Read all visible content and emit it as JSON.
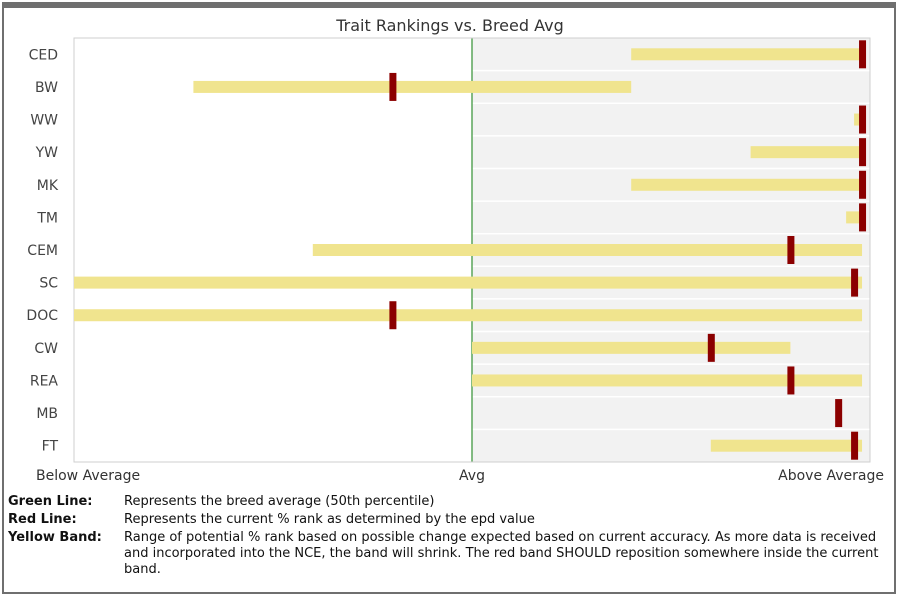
{
  "chart_data": {
    "type": "bar",
    "title": "Trait Rankings vs. Breed Avg",
    "x_axis": {
      "ticks": [
        "Below Average",
        "Avg",
        "Above Average"
      ],
      "range": [
        0,
        100
      ]
    },
    "breed_average": 50,
    "grid": true,
    "categories": [
      "CED",
      "BW",
      "WW",
      "YW",
      "MK",
      "TM",
      "CEM",
      "SC",
      "DOC",
      "CW",
      "REA",
      "MB",
      "FT"
    ],
    "series": [
      {
        "name": "Yellow Band",
        "type": "range",
        "values": [
          [
            70,
            99
          ],
          [
            15,
            70
          ],
          [
            98,
            99
          ],
          [
            85,
            99
          ],
          [
            70,
            99
          ],
          [
            97,
            99
          ],
          [
            30,
            99
          ],
          [
            0,
            99
          ],
          [
            0,
            99
          ],
          [
            50,
            90
          ],
          [
            50,
            99
          ],
          null,
          [
            80,
            99
          ]
        ]
      },
      {
        "name": "Red Line",
        "type": "marker",
        "values": [
          99,
          40,
          99,
          99,
          99,
          99,
          90,
          98,
          40,
          80,
          90,
          96,
          98
        ]
      }
    ]
  },
  "legend": [
    {
      "key": "Green Line:",
      "text": "Represents the breed average (50th percentile)"
    },
    {
      "key": "Red Line:",
      "text": "Represents the current % rank as determined by the epd value"
    },
    {
      "key": "Yellow Band:",
      "text": "Range of potential % rank based on possible change expected based on current accuracy. As more data is received and incorporated into the NCE, the band will shrink. The red band SHOULD reposition somewhere inside the current band."
    }
  ],
  "colors": {
    "band": "#f0e48e",
    "marker": "#8b0000",
    "avg_line": "#5aa55a",
    "right_bg": "#f2f2f2",
    "grid": "#ffffff",
    "border": "#6f6f6f"
  }
}
